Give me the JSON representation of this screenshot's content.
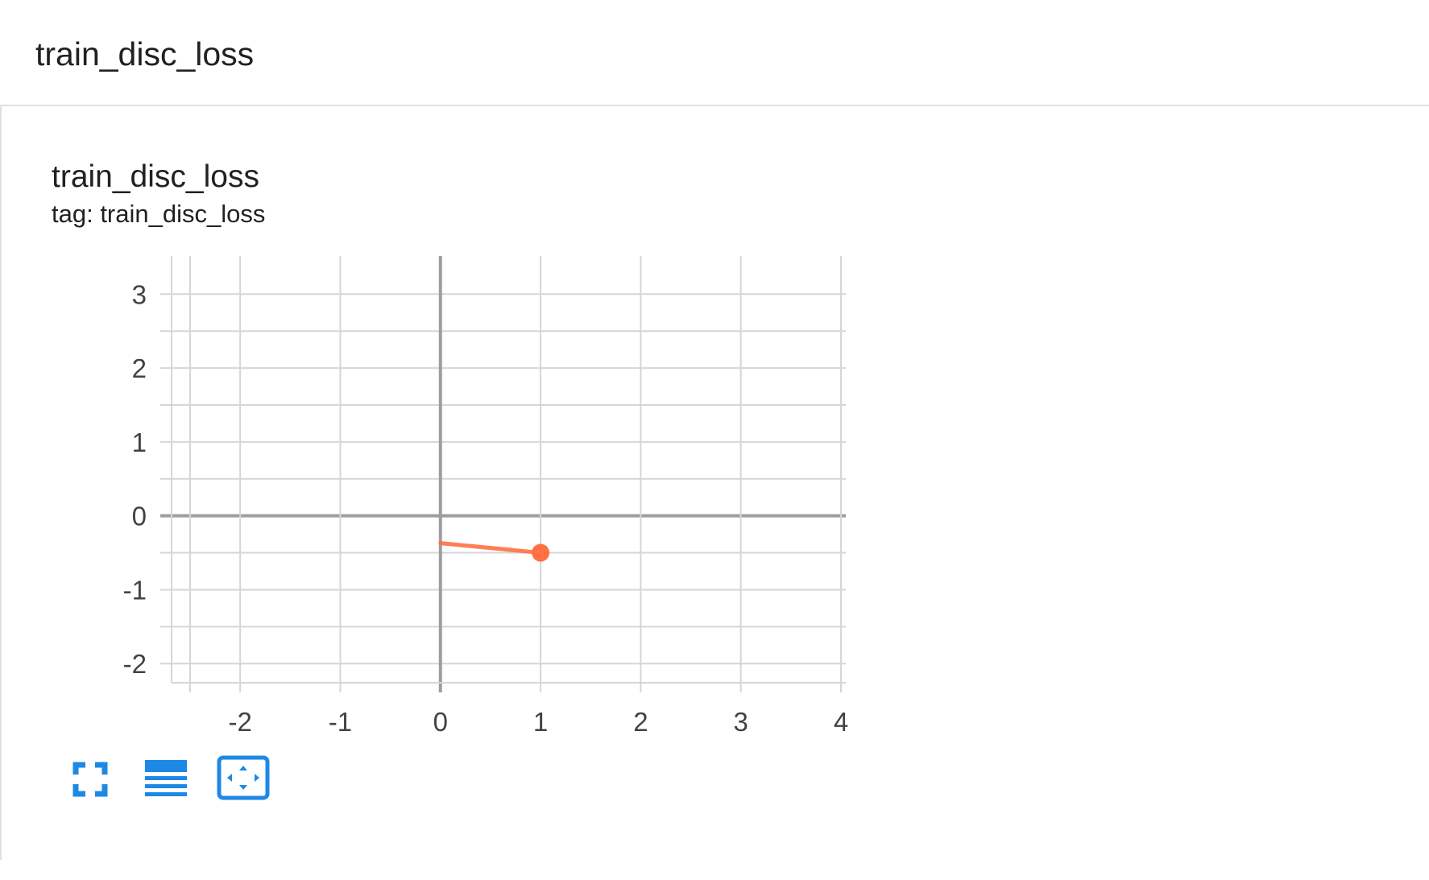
{
  "section": {
    "title": "train_disc_loss"
  },
  "card": {
    "title": "train_disc_loss",
    "tag": "tag: train_disc_loss"
  },
  "colors": {
    "series": "#ff7043",
    "accent": "#1e88e5",
    "axis": "#9e9e9e",
    "grid": "#d6d6d6"
  },
  "toolbar": {
    "icons": [
      "fullscreen-icon",
      "data-table-icon",
      "fit-domain-icon"
    ]
  },
  "chart_data": {
    "type": "line",
    "xlim": [
      -2.5,
      4
    ],
    "ylim": [
      -2.15,
      3.45
    ],
    "xticks": [
      -2,
      -1,
      0,
      1,
      2,
      3,
      4
    ],
    "xtick_labels": [
      "-2",
      "-1",
      "0",
      "1",
      "2",
      "3",
      "4"
    ],
    "yticks": [
      -2,
      -1,
      0,
      1,
      2,
      3
    ],
    "ytick_labels": [
      "-2",
      "-1",
      "0",
      "1",
      "2",
      "3"
    ],
    "grid": true,
    "series": [
      {
        "x": [
          0,
          1
        ],
        "y": [
          -0.37,
          -0.5
        ]
      }
    ]
  }
}
